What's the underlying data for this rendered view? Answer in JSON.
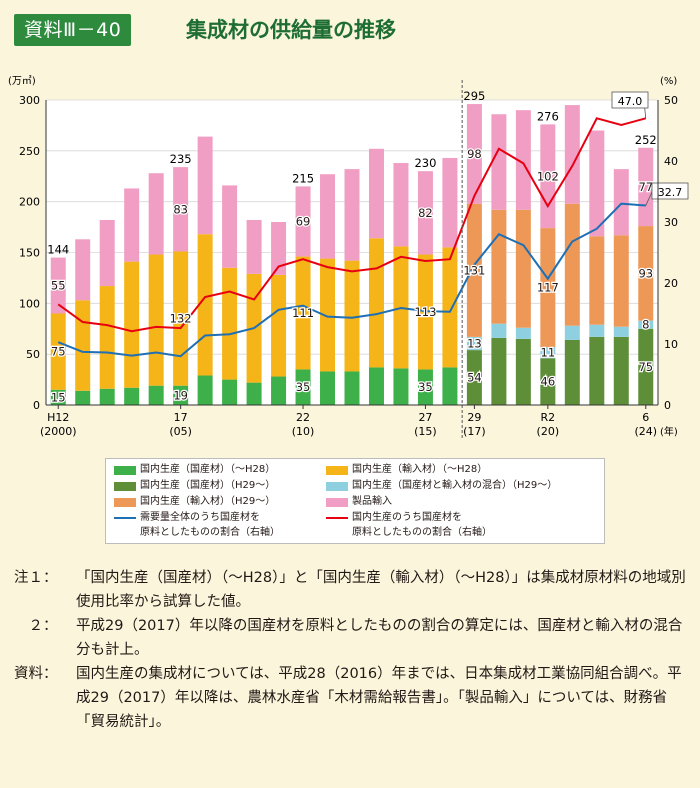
{
  "header": {
    "badge": "資料Ⅲ－40",
    "title": "集成材の供給量の推移"
  },
  "chart_data": {
    "type": "bar",
    "left_axis_unit": "(万㎥)",
    "right_axis_unit": "(%)",
    "x_unit": "(年)",
    "ylim": [
      0,
      300
    ],
    "y2lim": [
      0,
      50
    ],
    "y_ticks": [
      0,
      50,
      100,
      150,
      200,
      250,
      300
    ],
    "y2_ticks": [
      0,
      10,
      20,
      30,
      40,
      50
    ],
    "x_ticks": [
      {
        "year": 2000,
        "label1": "H12",
        "label2": "(2000)"
      },
      {
        "year": 2005,
        "label1": "17",
        "label2": "(05)"
      },
      {
        "year": 2010,
        "label1": "22",
        "label2": "(10)"
      },
      {
        "year": 2015,
        "label1": "27",
        "label2": "(15)"
      },
      {
        "year": 2017,
        "label1": "29",
        "label2": "(17)"
      },
      {
        "year": 2020,
        "label1": "R2",
        "label2": "(20)"
      },
      {
        "year": 2024,
        "label1": "6",
        "label2": "(24)"
      }
    ],
    "years": [
      2000,
      2001,
      2002,
      2003,
      2004,
      2005,
      2006,
      2007,
      2008,
      2009,
      2010,
      2011,
      2012,
      2013,
      2014,
      2015,
      2016,
      2017,
      2018,
      2019,
      2020,
      2021,
      2022,
      2023,
      2024
    ],
    "series": [
      {
        "name": "国内生産（国産材）（～H28）",
        "color": "#3db04a",
        "axis": "left",
        "values": [
          15,
          14,
          16,
          17,
          19,
          19,
          29,
          25,
          22,
          28,
          35,
          33,
          33,
          37,
          36,
          35,
          37,
          null,
          null,
          null,
          null,
          null,
          null,
          null,
          null
        ]
      },
      {
        "name": "国内生産（輸入材）（～H28）",
        "color": "#f5b417",
        "axis": "left",
        "values": [
          75,
          89,
          101,
          124,
          129,
          132,
          139,
          110,
          107,
          100,
          111,
          111,
          109,
          127,
          120,
          113,
          118,
          null,
          null,
          null,
          null,
          null,
          null,
          null,
          null
        ]
      },
      {
        "name": "国内生産（国産材）（H29～）",
        "color": "#5e8f38",
        "axis": "left",
        "values": [
          null,
          null,
          null,
          null,
          null,
          null,
          null,
          null,
          null,
          null,
          null,
          null,
          null,
          null,
          null,
          null,
          null,
          54,
          66,
          65,
          46,
          64,
          67,
          67,
          75
        ]
      },
      {
        "name": "国内生産（国産材と輸入材の混合）（H29～）",
        "color": "#8fd0e0",
        "axis": "left",
        "values": [
          null,
          null,
          null,
          null,
          null,
          null,
          null,
          null,
          null,
          null,
          null,
          null,
          null,
          null,
          null,
          null,
          null,
          13,
          14,
          11,
          11,
          14,
          12,
          10,
          8
        ]
      },
      {
        "name": "国内生産（輸入材）（H29～）",
        "color": "#ee9857",
        "axis": "left",
        "values": [
          null,
          null,
          null,
          null,
          null,
          null,
          null,
          null,
          null,
          null,
          null,
          null,
          null,
          null,
          null,
          null,
          null,
          131,
          112,
          116,
          117,
          120,
          87,
          90,
          93
        ]
      },
      {
        "name": "製品輸入",
        "color": "#f19ec4",
        "axis": "left",
        "values": [
          55,
          60,
          65,
          72,
          80,
          83,
          96,
          81,
          53,
          52,
          69,
          83,
          90,
          88,
          82,
          82,
          88,
          98,
          94,
          98,
          102,
          97,
          104,
          65,
          77
        ]
      },
      {
        "name": "需要量全体のうち国産材を原料としたものの割合（右軸）",
        "color": "#1f6fb5",
        "axis": "right",
        "values": [
          10.3,
          8.7,
          8.6,
          8.1,
          8.6,
          8.0,
          11.4,
          11.6,
          12.6,
          15.6,
          16.3,
          14.5,
          14.3,
          14.9,
          15.9,
          15.4,
          15.3,
          23.0,
          28.0,
          26.2,
          20.7,
          26.8,
          28.9,
          33.0,
          32.7
        ]
      },
      {
        "name": "国内生産のうち国産材を原料としたものの割合（右軸）",
        "color": "#e60012",
        "axis": "right",
        "values": [
          16.5,
          13.6,
          13.1,
          12.1,
          12.8,
          12.6,
          17.7,
          18.6,
          17.3,
          22.7,
          23.9,
          22.6,
          21.9,
          22.4,
          24.3,
          23.6,
          23.9,
          34.3,
          42.0,
          39.6,
          32.6,
          39.2,
          47.0,
          45.9,
          47.0
        ]
      }
    ],
    "total_labels": [
      {
        "year": 2000,
        "text": "144"
      },
      {
        "year": 2005,
        "text": "235"
      },
      {
        "year": 2010,
        "text": "215"
      },
      {
        "year": 2015,
        "text": "230"
      },
      {
        "year": 2017,
        "text": "295"
      },
      {
        "year": 2020,
        "text": "276"
      },
      {
        "year": 2024,
        "text": "252"
      }
    ],
    "segment_labels": [
      {
        "year": 2000,
        "series": 0,
        "text": "15"
      },
      {
        "year": 2000,
        "series": 1,
        "text": "75"
      },
      {
        "year": 2000,
        "series": 5,
        "text": "55"
      },
      {
        "year": 2005,
        "series": 0,
        "text": "19"
      },
      {
        "year": 2005,
        "series": 1,
        "text": "132"
      },
      {
        "year": 2005,
        "series": 5,
        "text": "83"
      },
      {
        "year": 2010,
        "series": 0,
        "text": "35"
      },
      {
        "year": 2010,
        "series": 1,
        "text": "111"
      },
      {
        "year": 2010,
        "series": 5,
        "text": "69"
      },
      {
        "year": 2015,
        "series": 0,
        "text": "35"
      },
      {
        "year": 2015,
        "series": 1,
        "text": "113"
      },
      {
        "year": 2015,
        "series": 5,
        "text": "82"
      },
      {
        "year": 2017,
        "series": 2,
        "text": "54"
      },
      {
        "year": 2017,
        "series": 3,
        "text": "13"
      },
      {
        "year": 2017,
        "series": 4,
        "text": "131"
      },
      {
        "year": 2017,
        "series": 5,
        "text": "98"
      },
      {
        "year": 2020,
        "series": 2,
        "text": "46"
      },
      {
        "year": 2020,
        "series": 3,
        "text": "11"
      },
      {
        "year": 2020,
        "series": 4,
        "text": "117"
      },
      {
        "year": 2020,
        "series": 5,
        "text": "102"
      },
      {
        "year": 2024,
        "series": 2,
        "text": "75"
      },
      {
        "year": 2024,
        "series": 3,
        "text": "8"
      },
      {
        "year": 2024,
        "series": 4,
        "text": "93"
      },
      {
        "year": 2024,
        "series": 5,
        "text": "77"
      }
    ],
    "line_end_labels": [
      {
        "series": 7,
        "text": "47.0"
      },
      {
        "series": 6,
        "text": "32.7"
      }
    ],
    "divider_between": [
      2016,
      2017
    ]
  },
  "legend": {
    "items": [
      {
        "label": "国内生産（国産材）（～H28）",
        "kind": "box",
        "color": "#3db04a"
      },
      {
        "label": "国内生産（輸入材）（～H28）",
        "kind": "box",
        "color": "#f5b417"
      },
      {
        "label": "国内生産（国産材）（H29～）",
        "kind": "box",
        "color": "#5e8f38"
      },
      {
        "label": "国内生産（国産材と輸入材の混合）（H29～）",
        "kind": "box",
        "color": "#8fd0e0"
      },
      {
        "label": "国内生産（輸入材）（H29～）",
        "kind": "box",
        "color": "#ee9857"
      },
      {
        "label": "製品輸入",
        "kind": "box",
        "color": "#f19ec4"
      },
      {
        "label": "需要量全体のうち国産材を",
        "label2": "原料としたものの割合（右軸）",
        "kind": "line",
        "color": "#1f6fb5"
      },
      {
        "label": "国内生産のうち国産材を",
        "label2": "原料としたものの割合（右軸）",
        "kind": "line",
        "color": "#e60012"
      }
    ]
  },
  "notes": [
    {
      "mark": "注１：",
      "text": "「国内生産（国産材）（～H28）」と「国内生産（輸入材）（～H28）」は集成材原材料の地域別使用比率から試算した値。"
    },
    {
      "mark": "　２：",
      "text": "平成29（2017）年以降の国産材を原料としたものの割合の算定には、国産材と輸入材の混合分も計上。"
    },
    {
      "mark": "資料：",
      "text": "国内生産の集成材については、平成28（2016）年までは、日本集成材工業協同組合調べ。平成29（2017）年以降は、農林水産省「木材需給報告書」。「製品輸入」については、財務省「貿易統計」。"
    }
  ]
}
